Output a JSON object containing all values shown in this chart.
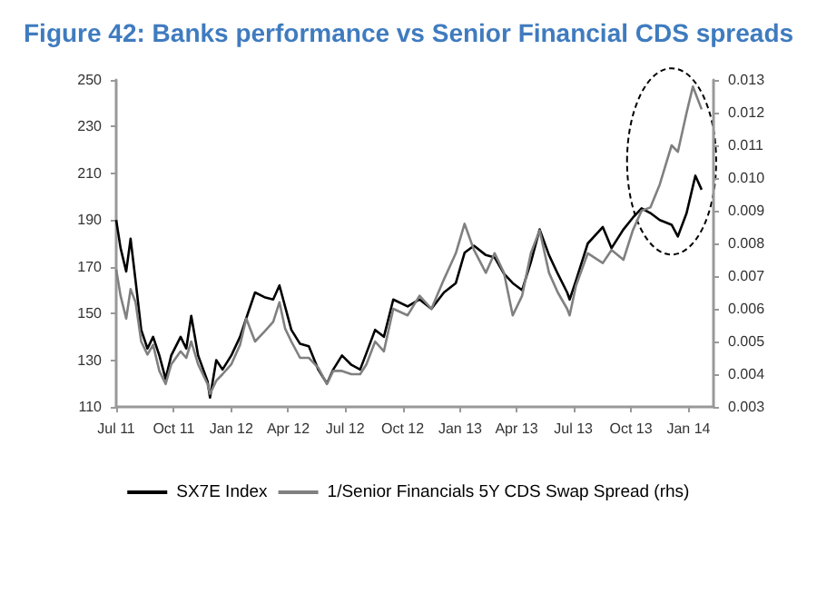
{
  "chart_data": {
    "type": "line",
    "title": "Figure 42: Banks performance vs Senior Financial CDS spreads",
    "series": [
      {
        "name": "SX7E Index",
        "color": "#000000",
        "x": [
          "2011-07-01",
          "2011-07-08",
          "2011-07-17",
          "2011-07-24",
          "2011-08-01",
          "2011-08-10",
          "2011-08-20",
          "2011-08-29",
          "2011-09-08",
          "2011-09-18",
          "2011-09-27",
          "2011-10-12",
          "2011-10-21",
          "2011-10-29",
          "2011-11-09",
          "2011-11-24",
          "2011-11-28",
          "2011-12-08",
          "2011-12-18",
          "2012-01-01",
          "2012-01-15",
          "2012-01-25",
          "2012-02-08",
          "2012-02-23",
          "2012-03-08",
          "2012-03-18",
          "2012-03-27",
          "2012-04-06",
          "2012-04-20",
          "2012-05-04",
          "2012-05-19",
          "2012-06-02",
          "2012-06-12",
          "2012-06-26",
          "2012-07-11",
          "2012-07-25",
          "2012-08-04",
          "2012-08-18",
          "2012-09-01",
          "2012-09-16",
          "2012-10-09",
          "2012-10-28",
          "2012-11-16",
          "2012-12-06",
          "2012-12-25",
          "2013-01-08",
          "2013-01-23",
          "2013-02-11",
          "2013-02-25",
          "2013-03-12",
          "2013-03-26",
          "2013-04-10",
          "2013-04-24",
          "2013-05-08",
          "2013-05-23",
          "2013-06-06",
          "2013-06-21",
          "2013-06-25",
          "2013-07-05",
          "2013-07-24",
          "2013-08-17",
          "2013-08-31",
          "2013-09-19",
          "2013-10-04",
          "2013-10-18",
          "2013-11-01",
          "2013-11-16",
          "2013-12-05",
          "2013-12-15",
          "2013-12-29",
          "2014-01-12",
          "2014-01-22"
        ],
        "values": [
          190,
          178,
          168,
          182,
          164,
          143,
          135,
          140,
          132,
          122,
          132,
          140,
          135,
          149,
          132,
          121,
          114,
          130,
          126,
          132,
          140,
          148,
          159,
          157,
          156,
          162,
          153,
          143,
          137,
          136,
          126,
          120,
          126,
          132,
          128,
          126,
          133,
          143,
          140,
          156,
          153,
          156,
          152,
          159,
          163,
          176,
          179,
          175,
          174,
          167,
          163,
          160,
          172,
          186,
          175,
          167,
          159,
          156,
          164,
          180,
          187,
          178,
          186,
          191,
          195,
          193,
          190,
          188,
          183,
          193,
          209,
          203
        ]
      },
      {
        "name": "1/Senior Financials 5Y CDS Swap Spread (rhs)",
        "color": "#808080",
        "axis": "y2",
        "x": [
          "2011-07-01",
          "2011-07-08",
          "2011-07-17",
          "2011-07-24",
          "2011-08-01",
          "2011-08-10",
          "2011-08-20",
          "2011-08-29",
          "2011-09-08",
          "2011-09-18",
          "2011-09-27",
          "2011-10-12",
          "2011-10-21",
          "2011-10-29",
          "2011-11-09",
          "2011-11-24",
          "2011-11-28",
          "2011-12-08",
          "2011-12-18",
          "2012-01-01",
          "2012-01-15",
          "2012-01-25",
          "2012-02-08",
          "2012-02-23",
          "2012-03-08",
          "2012-03-18",
          "2012-03-27",
          "2012-04-06",
          "2012-04-20",
          "2012-05-04",
          "2012-05-19",
          "2012-06-02",
          "2012-06-12",
          "2012-06-26",
          "2012-07-11",
          "2012-07-25",
          "2012-08-04",
          "2012-08-18",
          "2012-09-01",
          "2012-09-16",
          "2012-10-09",
          "2012-10-28",
          "2012-11-16",
          "2012-12-06",
          "2012-12-25",
          "2013-01-08",
          "2013-01-23",
          "2013-02-11",
          "2013-02-25",
          "2013-03-12",
          "2013-03-26",
          "2013-04-10",
          "2013-04-24",
          "2013-05-08",
          "2013-05-23",
          "2013-06-06",
          "2013-06-21",
          "2013-06-25",
          "2013-07-05",
          "2013-07-24",
          "2013-08-17",
          "2013-08-31",
          "2013-09-19",
          "2013-10-04",
          "2013-10-18",
          "2013-11-01",
          "2013-11-16",
          "2013-12-05",
          "2013-12-15",
          "2013-12-29",
          "2014-01-08",
          "2014-01-22"
        ],
        "values": [
          0.0072,
          0.0064,
          0.0057,
          0.0066,
          0.0062,
          0.005,
          0.0046,
          0.0049,
          0.0041,
          0.0037,
          0.0043,
          0.0047,
          0.0045,
          0.005,
          0.0043,
          0.0037,
          0.0034,
          0.0038,
          0.004,
          0.0043,
          0.0049,
          0.0057,
          0.005,
          0.0053,
          0.0056,
          0.0062,
          0.0054,
          0.005,
          0.0045,
          0.0045,
          0.0042,
          0.0037,
          0.0041,
          0.0041,
          0.004,
          0.004,
          0.0043,
          0.005,
          0.0047,
          0.006,
          0.0058,
          0.0064,
          0.006,
          0.0069,
          0.0077,
          0.0086,
          0.0078,
          0.0071,
          0.0077,
          0.0071,
          0.0058,
          0.0064,
          0.0077,
          0.0084,
          0.0071,
          0.0065,
          0.006,
          0.0058,
          0.0067,
          0.0077,
          0.0074,
          0.0078,
          0.0075,
          0.0084,
          0.009,
          0.0091,
          0.0098,
          0.011,
          0.0108,
          0.012,
          0.0128,
          0.0121
        ]
      }
    ],
    "xlim": [
      "2011-07-01",
      "2014-02-10"
    ],
    "xticks": [
      {
        "value": "2011-07-01",
        "label": "Jul 11"
      },
      {
        "value": "2011-10-01",
        "label": "Oct 11"
      },
      {
        "value": "2012-01-01",
        "label": "Jan 12"
      },
      {
        "value": "2012-04-01",
        "label": "Apr 12"
      },
      {
        "value": "2012-07-01",
        "label": "Jul 12"
      },
      {
        "value": "2012-10-01",
        "label": "Oct 12"
      },
      {
        "value": "2013-01-01",
        "label": "Jan 13"
      },
      {
        "value": "2013-04-01",
        "label": "Apr 13"
      },
      {
        "value": "2013-07-01",
        "label": "Jul 13"
      },
      {
        "value": "2013-10-01",
        "label": "Oct 13"
      },
      {
        "value": "2014-01-01",
        "label": "Jan 14"
      }
    ],
    "ylim": [
      110,
      250
    ],
    "yticks": [
      110,
      130,
      150,
      170,
      190,
      210,
      230,
      250
    ],
    "y2lim": [
      0.003,
      0.013
    ],
    "y2ticks": [
      0.003,
      0.004,
      0.005,
      0.006,
      0.007,
      0.008,
      0.009,
      {
        "value": 0.01,
        "label": "0.010"
      },
      0.011,
      0.012,
      0.013
    ],
    "legend": "bottom",
    "grid": false
  }
}
